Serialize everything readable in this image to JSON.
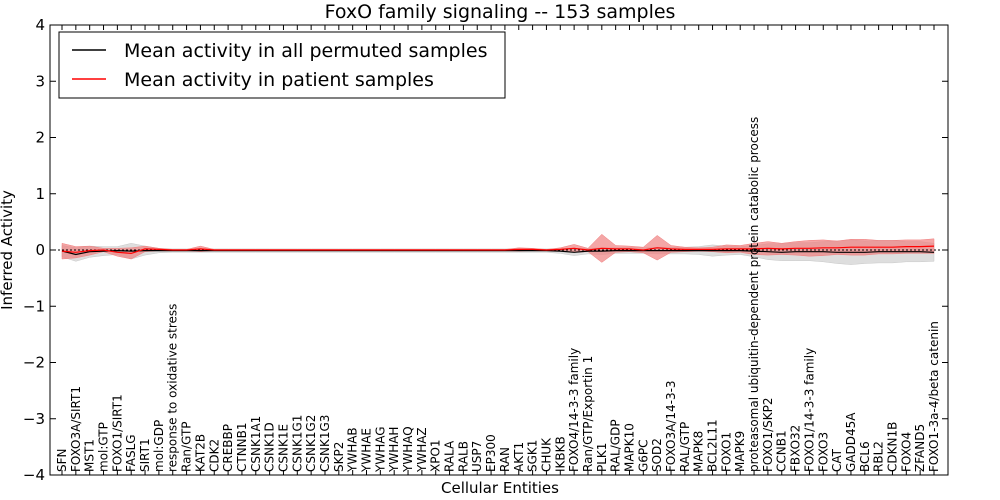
{
  "chart_data": {
    "type": "line",
    "title": "FoxO family signaling -- 153 samples",
    "xlabel": "Cellular Entities",
    "ylabel": "Inferred Activity",
    "ylim": [
      -4,
      4
    ],
    "yticks": [
      -4,
      -3,
      -2,
      -1,
      0,
      1,
      2,
      3,
      4
    ],
    "ytick_labels": [
      "−4",
      "−3",
      "−2",
      "−1",
      "0",
      "1",
      "2",
      "3",
      "4"
    ],
    "legend": {
      "position": "top-left",
      "entries": [
        {
          "label": "Mean activity in all permuted samples",
          "color": "#000000"
        },
        {
          "label": "Mean activity in patient samples",
          "color": "#ff0000"
        }
      ]
    },
    "categories": [
      "SFN",
      "FOXO3A/SIRT1",
      "MST1",
      "mol:GTP",
      "FOXO1/SIRT1",
      "FASLG",
      "SIRT1",
      "mol:GDP",
      "response to oxidative stress",
      "Ran/GTP",
      "KAT2B",
      "CDK2",
      "CREBBP",
      "CTNNB1",
      "CSNK1A1",
      "CSNK1D",
      "CSNK1E",
      "CSNK1G1",
      "CSNK1G2",
      "CSNK1G3",
      "SKP2",
      "YWHAB",
      "YWHAE",
      "YWHAG",
      "YWHAH",
      "YWHAQ",
      "YWHAZ",
      "XPO1",
      "RALA",
      "RALB",
      "USP7",
      "EP300",
      "RAN",
      "AKT1",
      "SGK1",
      "CHUK",
      "IKBKB",
      "FOXO4/14-3-3 family",
      "Ran/GTP/Exportin 1",
      "PLK1",
      "RAL/GDP",
      "MAPK10",
      "G6PC",
      "SOD2",
      "FOXO3A/14-3-3",
      "RAL/GTP",
      "MAPK8",
      "BCL2L11",
      "FOXO1",
      "MAPK9",
      "proteasomal ubiquitin-dependent protein catabolic process",
      "FOXO1/SKP2",
      "CCNB1",
      "FBXO32",
      "FOXO1/14-3-3 family",
      "FOXO3",
      "CAT",
      "GADD45A",
      "BCL6",
      "RBL2",
      "CDKN1B",
      "FOXO4",
      "ZFAND5",
      "FOXO1-3a-4/beta catenin"
    ],
    "series": [
      {
        "name": "Mean activity in all permuted samples",
        "color": "#000000",
        "band_color": "#c8c8c8",
        "values": [
          -0.02,
          -0.08,
          -0.03,
          -0.02,
          -0.01,
          -0.02,
          -0.01,
          -0.01,
          -0.01,
          -0.01,
          -0.01,
          -0.01,
          -0.01,
          -0.01,
          -0.01,
          -0.01,
          -0.01,
          -0.01,
          -0.01,
          -0.01,
          -0.01,
          -0.01,
          -0.01,
          -0.01,
          -0.01,
          -0.01,
          -0.01,
          -0.01,
          -0.01,
          -0.01,
          -0.01,
          -0.01,
          -0.01,
          -0.01,
          -0.01,
          -0.01,
          -0.02,
          -0.04,
          -0.02,
          -0.02,
          -0.01,
          -0.01,
          -0.01,
          -0.01,
          -0.01,
          -0.01,
          -0.01,
          -0.01,
          -0.01,
          -0.01,
          -0.02,
          -0.03,
          -0.04,
          -0.03,
          -0.03,
          -0.03,
          -0.04,
          -0.04,
          -0.04,
          -0.03,
          -0.03,
          -0.03,
          -0.03,
          -0.04
        ],
        "band_half_width": [
          0.1,
          0.12,
          0.1,
          0.08,
          0.07,
          0.14,
          0.08,
          0.04,
          0.03,
          0.03,
          0.03,
          0.03,
          0.03,
          0.03,
          0.03,
          0.03,
          0.03,
          0.03,
          0.03,
          0.03,
          0.03,
          0.03,
          0.03,
          0.03,
          0.03,
          0.03,
          0.03,
          0.03,
          0.03,
          0.03,
          0.03,
          0.03,
          0.03,
          0.03,
          0.03,
          0.03,
          0.04,
          0.06,
          0.05,
          0.06,
          0.05,
          0.05,
          0.05,
          0.06,
          0.06,
          0.06,
          0.07,
          0.1,
          0.08,
          0.07,
          0.1,
          0.14,
          0.15,
          0.16,
          0.16,
          0.18,
          0.2,
          0.22,
          0.2,
          0.2,
          0.2,
          0.18,
          0.18,
          0.16
        ]
      },
      {
        "name": "Mean activity in patient samples",
        "color": "#ff0000",
        "band_color": "#f08080",
        "values": [
          -0.02,
          -0.04,
          -0.01,
          0.0,
          -0.04,
          -0.06,
          0.02,
          0.01,
          0.0,
          0.0,
          0.02,
          0.0,
          0.0,
          0.0,
          0.0,
          0.0,
          0.0,
          0.0,
          0.0,
          0.0,
          0.0,
          0.0,
          0.0,
          0.0,
          0.0,
          0.0,
          0.0,
          0.0,
          0.0,
          0.0,
          0.0,
          0.0,
          0.0,
          0.01,
          0.01,
          0.0,
          0.01,
          0.03,
          0.0,
          0.03,
          0.02,
          0.02,
          0.0,
          0.04,
          0.02,
          0.01,
          0.01,
          0.01,
          0.02,
          0.02,
          0.02,
          0.03,
          0.02,
          0.03,
          0.03,
          0.04,
          0.04,
          0.05,
          0.05,
          0.05,
          0.05,
          0.06,
          0.06,
          0.07
        ],
        "band_half_width": [
          0.14,
          0.1,
          0.08,
          0.03,
          0.07,
          0.1,
          0.05,
          0.02,
          0.01,
          0.01,
          0.05,
          0.01,
          0.01,
          0.01,
          0.01,
          0.01,
          0.01,
          0.01,
          0.01,
          0.01,
          0.01,
          0.01,
          0.01,
          0.01,
          0.01,
          0.01,
          0.01,
          0.01,
          0.01,
          0.01,
          0.01,
          0.01,
          0.01,
          0.03,
          0.02,
          0.01,
          0.03,
          0.07,
          0.03,
          0.25,
          0.06,
          0.05,
          0.05,
          0.22,
          0.06,
          0.04,
          0.03,
          0.04,
          0.07,
          0.06,
          0.1,
          0.12,
          0.1,
          0.12,
          0.14,
          0.14,
          0.12,
          0.14,
          0.14,
          0.12,
          0.12,
          0.12,
          0.12,
          0.13
        ]
      }
    ],
    "baseline": 0
  }
}
